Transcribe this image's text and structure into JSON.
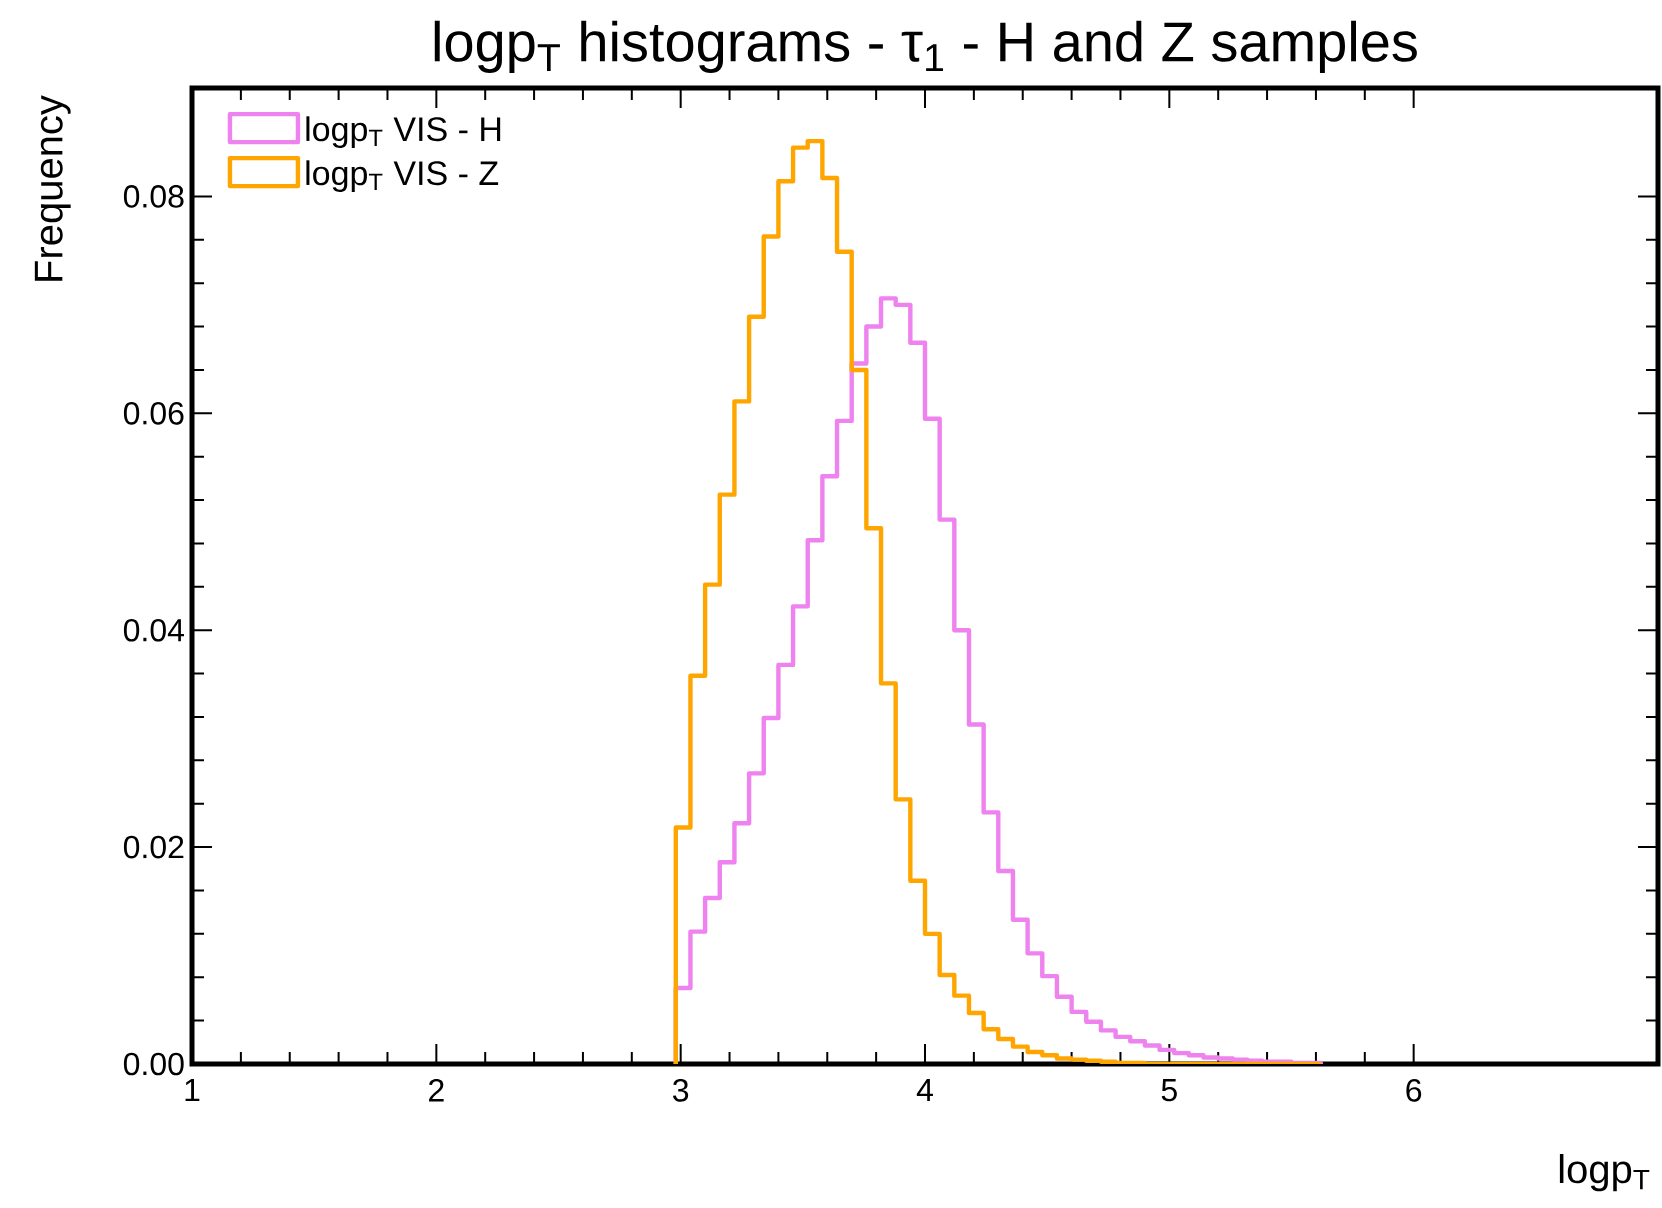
{
  "chart_data": {
    "type": "histogram",
    "title": "logp$_{T}$ histograms - τ$_{1}$ -  H and Z samples",
    "xlabel": "logp$_{T}$",
    "ylabel": "Frequency",
    "bins": [
      2.98,
      3.04,
      3.1,
      3.16,
      3.22,
      3.28,
      3.34,
      3.4,
      3.46,
      3.52,
      3.58,
      3.64,
      3.7,
      3.76,
      3.82,
      3.88,
      3.94,
      4.0,
      4.06,
      4.12,
      4.18,
      4.24,
      4.3,
      4.36,
      4.42,
      4.48,
      4.54,
      4.6,
      4.66,
      4.72,
      4.78,
      4.84,
      4.9,
      4.96,
      5.02,
      5.08,
      5.14,
      5.2,
      5.26,
      5.32,
      5.38,
      5.44,
      5.5,
      5.56,
      5.62
    ],
    "series": [
      {
        "name": "logp$_{T}$ VIS - H",
        "color": "#ee82ee",
        "values": [
          0.007,
          0.0122,
          0.0153,
          0.0186,
          0.0222,
          0.0268,
          0.0319,
          0.0368,
          0.0422,
          0.0483,
          0.0542,
          0.0593,
          0.0646,
          0.068,
          0.0706,
          0.07,
          0.0665,
          0.0595,
          0.0502,
          0.04,
          0.0313,
          0.0232,
          0.0178,
          0.0133,
          0.0102,
          0.0081,
          0.0062,
          0.0048,
          0.0039,
          0.0031,
          0.0025,
          0.0021,
          0.0017,
          0.0013,
          0.001,
          0.0008,
          0.0006,
          0.0005,
          0.0004,
          0.0003,
          0.0002,
          0.0002,
          0.0001,
          0.0001
        ]
      },
      {
        "name": "logp$_{T}$ VIS - Z",
        "color": "#ffa500",
        "values": [
          0.0218,
          0.0358,
          0.0442,
          0.0525,
          0.0611,
          0.0689,
          0.0763,
          0.0814,
          0.0845,
          0.0851,
          0.0817,
          0.0749,
          0.064,
          0.0494,
          0.0351,
          0.0244,
          0.0169,
          0.012,
          0.0082,
          0.0063,
          0.0047,
          0.0032,
          0.0023,
          0.0016,
          0.0011,
          0.0008,
          0.0005,
          0.0004,
          0.0003,
          0.0002,
          0.0001,
          0.0001,
          0,
          0,
          0,
          0,
          0,
          0,
          0,
          0,
          0,
          0,
          0,
          0
        ]
      }
    ],
    "xlim": [
      1,
      7
    ],
    "ylim": [
      0,
      0.09
    ],
    "xticks": [
      1,
      2,
      3,
      4,
      5,
      6
    ],
    "yticks": [
      {
        "value": 0,
        "label": "0.00"
      },
      {
        "value": 0.02,
        "label": "0.02"
      },
      {
        "value": 0.04,
        "label": "0.04"
      },
      {
        "value": 0.06,
        "label": "0.06"
      },
      {
        "value": 0.08,
        "label": "0.08"
      }
    ],
    "legend": "top left"
  }
}
